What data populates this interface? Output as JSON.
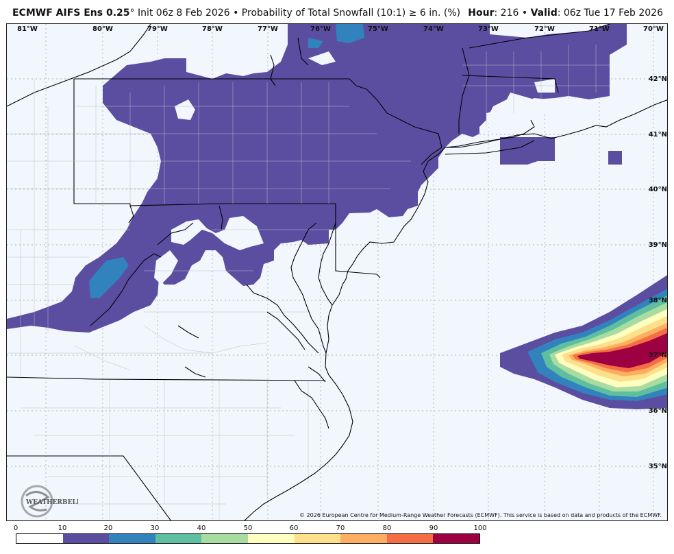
{
  "header": {
    "model": "ECMWF AIFS Ens 0.25",
    "deg": "°",
    "init": "Init 06z 8 Feb 2026",
    "bullet": "•",
    "product": "Probability of Total Snowfall (10:1) ≥ 6 in. (%)",
    "hour_label": "Hour",
    "hour_value": ": 216",
    "valid_label": "Valid",
    "valid_value": ": 06z Tue 17 Feb 2026"
  },
  "map": {
    "lon_labels": [
      "81°W",
      "80°W",
      "79°W",
      "78°W",
      "77°W",
      "76°W",
      "75°W",
      "74°W",
      "73°W",
      "72°W",
      "71°W",
      "70°W"
    ],
    "lat_labels": [
      "42°N",
      "41°N",
      "40°N",
      "39°N",
      "38°N",
      "37°N",
      "36°N",
      "35°N"
    ],
    "copyright": "© 2026 European Centre for Medium-Range Weather Forecasts (ECMWF). This service is based on data and products of the ECMWF.",
    "logo_text": "WEATHERBELL",
    "colors": {
      "ocean": "#f2f6fd",
      "land_fill": "#f2f6fd",
      "prob_10_20": "#5b4ea1",
      "prob_20_30": "#3182bd",
      "prob_30_40": "#5dbfa0",
      "prob_40_50": "#a8dca0",
      "prob_50_60": "#ffffbf",
      "prob_60_70": "#fee08b",
      "prob_70_80": "#fdae61",
      "prob_80_90": "#f46d43",
      "prob_90_100": "#9e0142"
    }
  },
  "colorbar": {
    "ticks": [
      "0",
      "10",
      "20",
      "30",
      "40",
      "50",
      "60",
      "70",
      "80",
      "90",
      "100"
    ],
    "colors": [
      "#ffffff",
      "#5b4ea1",
      "#3182bd",
      "#5dbfa0",
      "#a8dca0",
      "#ffffbf",
      "#fee08b",
      "#fdae61",
      "#f46d43",
      "#9e0142"
    ]
  }
}
